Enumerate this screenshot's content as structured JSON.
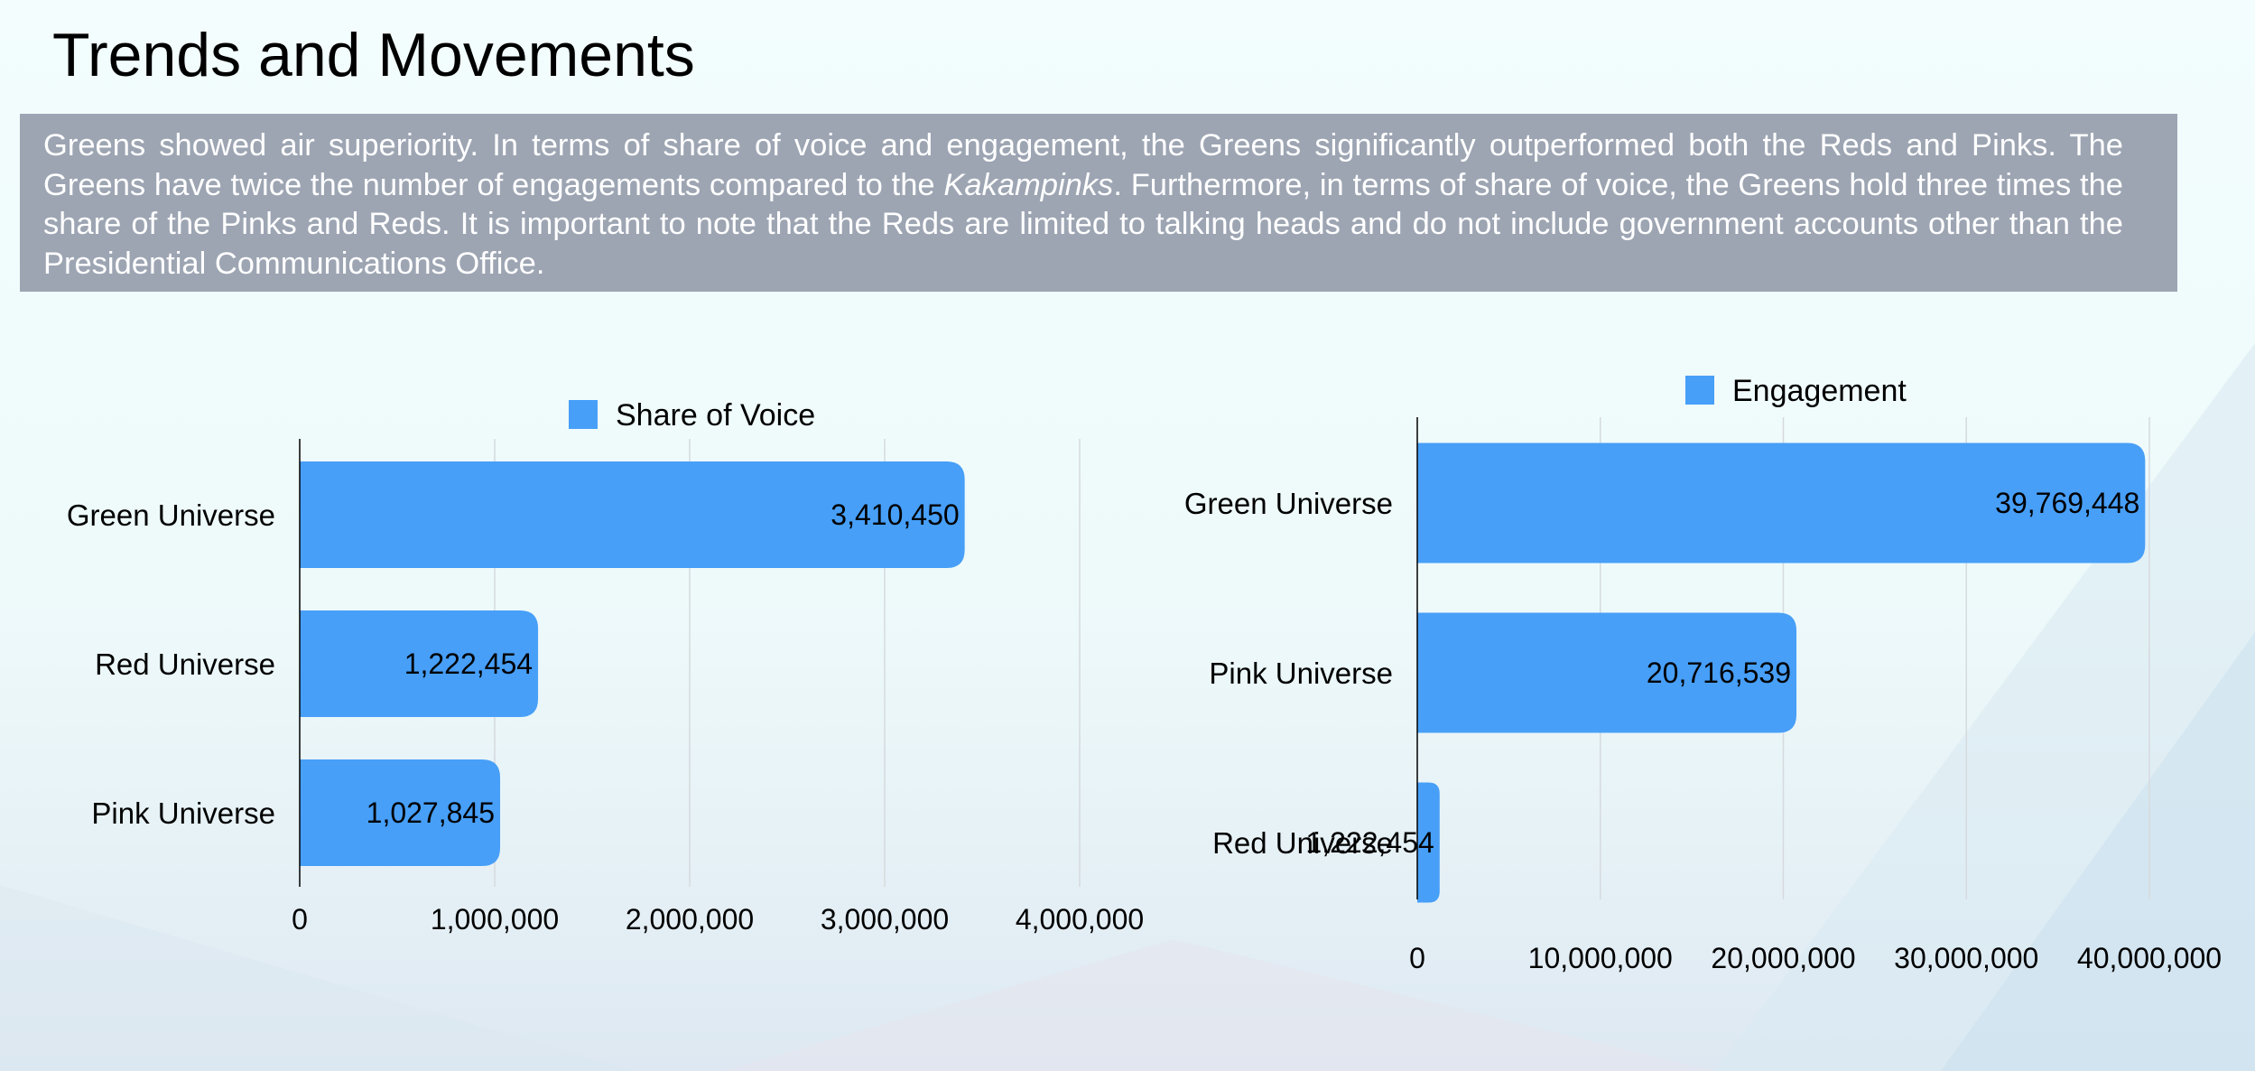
{
  "page": {
    "title": "Trends and Movements",
    "summary": {
      "part1": "Greens showed air superiority. In terms of share of voice and engagement, the Greens significantly outperformed both the Reds and Pinks. The Greens have twice the number of engagements compared to the ",
      "italic": "Kakampinks",
      "part2": ". Furthermore, in terms of share of voice, the Greens hold three times the share of the Pinks and Reds. It is important to note that the Reds are limited to talking heads and do not include government accounts other than the Presidential Communications Office."
    }
  },
  "colors": {
    "bar": "#479ff8",
    "summary_bg": "#9da5b3",
    "grid": "#d6dade",
    "axis": "#000000"
  },
  "chart_data": [
    {
      "type": "bar",
      "orientation": "horizontal",
      "title": "",
      "legend": "top",
      "grid": true,
      "categories": [
        "Green Universe",
        "Red Universe",
        "Pink Universe"
      ],
      "series": [
        {
          "name": "Share of Voice",
          "values": [
            3410450,
            1222454,
            1027845
          ]
        }
      ],
      "data_labels": [
        "3,410,450",
        "1,222,454",
        "1,027,845"
      ],
      "xlim": [
        0,
        4000000
      ],
      "xticks": [
        0,
        1000000,
        2000000,
        3000000,
        4000000
      ],
      "xtick_labels": [
        "0",
        "1,000,000",
        "2,000,000",
        "3,000,000",
        "4,000,000"
      ],
      "xlabel": "",
      "ylabel": ""
    },
    {
      "type": "bar",
      "orientation": "horizontal",
      "title": "",
      "legend": "top",
      "grid": true,
      "categories": [
        "Green Universe",
        "Pink Universe",
        "Red Universe"
      ],
      "series": [
        {
          "name": "Engagement",
          "values": [
            39769448,
            20716539,
            1222454
          ]
        }
      ],
      "data_labels": [
        "39,769,448",
        "20,716,539",
        "1,222,454"
      ],
      "xlim": [
        0,
        40000000
      ],
      "xticks": [
        0,
        10000000,
        20000000,
        30000000,
        40000000
      ],
      "xtick_labels": [
        "0",
        "10,000,000",
        "20,000,000",
        "30,000,000",
        "40,000,000"
      ],
      "xlabel": "",
      "ylabel": ""
    }
  ]
}
